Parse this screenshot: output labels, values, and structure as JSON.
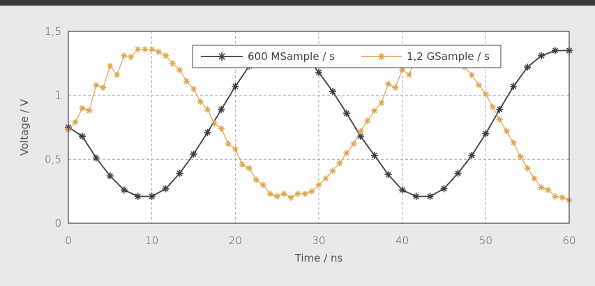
{
  "colors": {
    "series_600": "#3d3d47",
    "series_1200": "#e1a24a",
    "grid": "#9a9a9a",
    "frame": "#444444",
    "background": "#e9e9eb",
    "plot_background": "#ffffff"
  },
  "chart_data": {
    "type": "line",
    "xlabel": "Time / ns",
    "ylabel": "Voltage / V",
    "xlim": [
      0,
      60
    ],
    "ylim": [
      0,
      1.5
    ],
    "xticks": [
      0,
      10,
      20,
      30,
      40,
      50,
      60
    ],
    "xtick_labels": [
      "0",
      "10",
      "20",
      "30",
      "40",
      "50",
      "60"
    ],
    "yticks": [
      0,
      0.5,
      1,
      1.5
    ],
    "ytick_labels": [
      "0",
      "0,5",
      "1",
      "1,5"
    ],
    "grid": "dashed",
    "legend_position": "top-right",
    "marker": "asterisk",
    "series": [
      {
        "name": "600 MSample / s",
        "color": "#3d3d47",
        "x": [
          0,
          1.67,
          3.33,
          5,
          6.67,
          8.33,
          10,
          11.67,
          13.33,
          15,
          16.67,
          18.33,
          20,
          21.67,
          23.33,
          25,
          26.67,
          28.33,
          30,
          31.67,
          33.33,
          35,
          36.67,
          38.33,
          40,
          41.67,
          43.33,
          45,
          46.67,
          48.33,
          50,
          51.67,
          53.33,
          55,
          56.67,
          58.33,
          60
        ],
        "y": [
          0.75,
          0.68,
          0.51,
          0.37,
          0.26,
          0.21,
          0.21,
          0.27,
          0.39,
          0.54,
          0.71,
          0.89,
          1.07,
          1.23,
          1.33,
          1.36,
          1.36,
          1.31,
          1.18,
          1.03,
          0.86,
          0.68,
          0.53,
          0.38,
          0.26,
          0.21,
          0.21,
          0.27,
          0.39,
          0.53,
          0.7,
          0.89,
          1.07,
          1.22,
          1.31,
          1.35,
          1.35
        ]
      },
      {
        "name": "1,2 GSample / s",
        "color": "#e1a24a",
        "x": [
          0,
          0.83,
          1.67,
          2.5,
          3.33,
          4.17,
          5,
          5.83,
          6.67,
          7.5,
          8.33,
          9.17,
          10,
          10.83,
          11.67,
          12.5,
          13.33,
          14.17,
          15,
          15.83,
          16.67,
          17.5,
          18.33,
          19.17,
          20,
          20.83,
          21.67,
          22.5,
          23.33,
          24.17,
          25,
          25.83,
          26.67,
          27.5,
          28.33,
          29.17,
          30,
          30.83,
          31.67,
          32.5,
          33.33,
          34.17,
          35,
          35.83,
          36.67,
          37.5,
          38.33,
          39.17,
          40,
          40.83,
          41.67,
          42.5,
          43.33,
          44.17,
          45,
          45.83,
          46.67,
          47.5,
          48.33,
          49.17,
          50,
          50.83,
          51.67,
          52.5,
          53.33,
          54.17,
          55,
          55.83,
          56.67,
          57.5,
          58.33,
          59.17,
          60
        ],
        "y": [
          0.73,
          0.79,
          0.9,
          0.88,
          1.08,
          1.06,
          1.23,
          1.16,
          1.31,
          1.3,
          1.36,
          1.36,
          1.36,
          1.34,
          1.31,
          1.25,
          1.2,
          1.11,
          1.05,
          0.95,
          0.89,
          0.78,
          0.74,
          0.62,
          0.58,
          0.46,
          0.43,
          0.34,
          0.3,
          0.23,
          0.21,
          0.23,
          0.2,
          0.23,
          0.23,
          0.25,
          0.3,
          0.35,
          0.41,
          0.47,
          0.55,
          0.62,
          0.72,
          0.8,
          0.88,
          0.94,
          1.09,
          1.06,
          1.2,
          1.16,
          1.31,
          1.29,
          1.35,
          1.34,
          1.33,
          1.31,
          1.27,
          1.22,
          1.16,
          1.08,
          1.01,
          0.91,
          0.81,
          0.72,
          0.63,
          0.52,
          0.43,
          0.35,
          0.28,
          0.26,
          0.21,
          0.2,
          0.18
        ]
      }
    ]
  }
}
